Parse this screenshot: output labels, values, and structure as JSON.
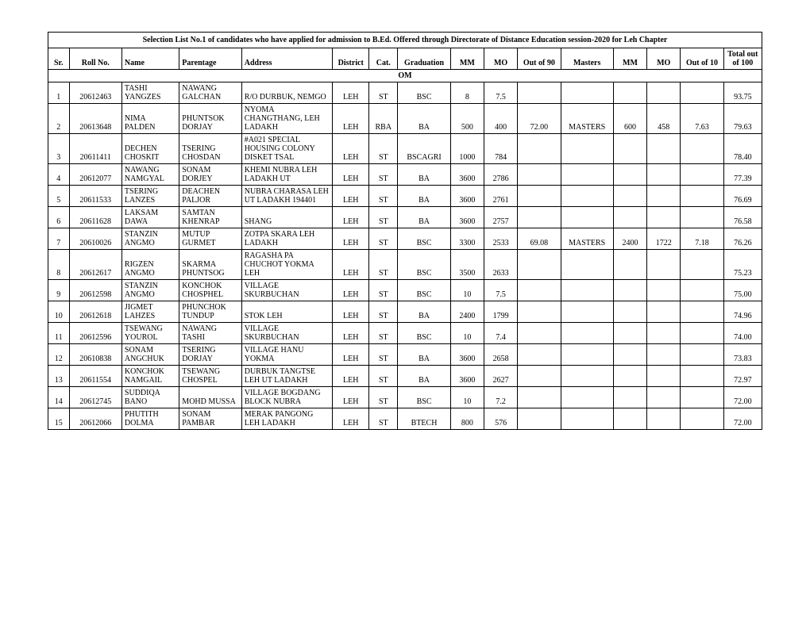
{
  "title": "Selection List No.1 of candidates who have applied for admission to B.Ed. Offered through Directorate of Distance Education session-2020 for Leh Chapter",
  "headers": {
    "sr": "Sr.",
    "roll": "Roll No.",
    "name": "Name",
    "parentage": "Parentage",
    "address": "Address",
    "district": "District",
    "cat": "Cat.",
    "graduation": "Graduation",
    "mm": "MM",
    "mo": "MO",
    "out90": "Out of 90",
    "masters": "Masters",
    "mm2": "MM",
    "mo2": "MO",
    "out10": "Out of 10",
    "total": "Total out of 100"
  },
  "section": "OM",
  "rows": [
    {
      "sr": "1",
      "roll": "20612463",
      "name": "TASHI YANGZES",
      "par": "NAWANG GALCHAN",
      "addr": "R/O DURBUK, NEMGO",
      "dist": "LEH",
      "cat": "ST",
      "grad": "BSC",
      "mm": "8",
      "mo": "7.5",
      "o90": "",
      "mast": "",
      "mm2": "",
      "mo2": "",
      "o10": "",
      "tot": "93.75"
    },
    {
      "sr": "2",
      "roll": "20613648",
      "name": "NIMA PALDEN",
      "par": "PHUNTSOK DORJAY",
      "addr": "NYOMA CHANGTHANG, LEH LADAKH",
      "dist": "LEH",
      "cat": "RBA",
      "grad": "BA",
      "mm": "500",
      "mo": "400",
      "o90": "72.00",
      "mast": "MASTERS",
      "mm2": "600",
      "mo2": "458",
      "o10": "7.63",
      "tot": "79.63"
    },
    {
      "sr": "3",
      "roll": "20611411",
      "name": "DECHEN CHOSKIT",
      "par": "TSERING CHOSDAN",
      "addr": "#A021 SPECIAL HOUSING COLONY DISKET TSAL",
      "dist": "LEH",
      "cat": "ST",
      "grad": "BSCAGRI",
      "mm": "1000",
      "mo": "784",
      "o90": "",
      "mast": "",
      "mm2": "",
      "mo2": "",
      "o10": "",
      "tot": "78.40"
    },
    {
      "sr": "4",
      "roll": "20612077",
      "name": "NAWANG NAMGYAL",
      "par": "SONAM DORJEY",
      "addr": "KHEMI NUBRA LEH LADAKH UT",
      "dist": "LEH",
      "cat": "ST",
      "grad": "BA",
      "mm": "3600",
      "mo": "2786",
      "o90": "",
      "mast": "",
      "mm2": "",
      "mo2": "",
      "o10": "",
      "tot": "77.39"
    },
    {
      "sr": "5",
      "roll": "20611533",
      "name": "TSERING LANZES",
      "par": "DEACHEN PALJOR",
      "addr": "NUBRA CHARASA LEH UT LADAKH 194401",
      "dist": "LEH",
      "cat": "ST",
      "grad": "BA",
      "mm": "3600",
      "mo": "2761",
      "o90": "",
      "mast": "",
      "mm2": "",
      "mo2": "",
      "o10": "",
      "tot": "76.69"
    },
    {
      "sr": "6",
      "roll": "20611628",
      "name": "LAKSAM DAWA",
      "par": "SAMTAN KHENRAP",
      "addr": "SHANG",
      "dist": "LEH",
      "cat": "ST",
      "grad": "BA",
      "mm": "3600",
      "mo": "2757",
      "o90": "",
      "mast": "",
      "mm2": "",
      "mo2": "",
      "o10": "",
      "tot": "76.58"
    },
    {
      "sr": "7",
      "roll": "20610026",
      "name": "STANZIN ANGMO",
      "par": "MUTUP GURMET",
      "addr": "ZOTPA SKARA LEH LADAKH",
      "dist": "LEH",
      "cat": "ST",
      "grad": "BSC",
      "mm": "3300",
      "mo": "2533",
      "o90": "69.08",
      "mast": "MASTERS",
      "mm2": "2400",
      "mo2": "1722",
      "o10": "7.18",
      "tot": "76.26"
    },
    {
      "sr": "8",
      "roll": "20612617",
      "name": "RIGZEN ANGMO",
      "par": "SKARMA PHUNTSOG",
      "addr": "RAGASHA PA CHUCHOT YOKMA LEH",
      "dist": "LEH",
      "cat": "ST",
      "grad": "BSC",
      "mm": "3500",
      "mo": "2633",
      "o90": "",
      "mast": "",
      "mm2": "",
      "mo2": "",
      "o10": "",
      "tot": "75.23"
    },
    {
      "sr": "9",
      "roll": "20612598",
      "name": "STANZIN ANGMO",
      "par": "KONCHOK CHOSPHEL",
      "addr": "VILLAGE SKURBUCHAN",
      "dist": "LEH",
      "cat": "ST",
      "grad": "BSC",
      "mm": "10",
      "mo": "7.5",
      "o90": "",
      "mast": "",
      "mm2": "",
      "mo2": "",
      "o10": "",
      "tot": "75.00"
    },
    {
      "sr": "10",
      "roll": "20612618",
      "name": "JIGMET LAHZES",
      "par": "PHUNCHOK TUNDUP",
      "addr": "STOK LEH",
      "dist": "LEH",
      "cat": "ST",
      "grad": "BA",
      "mm": "2400",
      "mo": "1799",
      "o90": "",
      "mast": "",
      "mm2": "",
      "mo2": "",
      "o10": "",
      "tot": "74.96"
    },
    {
      "sr": "11",
      "roll": "20612596",
      "name": "TSEWANG YOUROL",
      "par": "NAWANG TASHI",
      "addr": "VILLAGE SKURBUCHAN",
      "dist": "LEH",
      "cat": "ST",
      "grad": "BSC",
      "mm": "10",
      "mo": "7.4",
      "o90": "",
      "mast": "",
      "mm2": "",
      "mo2": "",
      "o10": "",
      "tot": "74.00"
    },
    {
      "sr": "12",
      "roll": "20610838",
      "name": "SONAM ANGCHUK",
      "par": "TSERING DORJAY",
      "addr": "VILLAGE HANU YOKMA",
      "dist": "LEH",
      "cat": "ST",
      "grad": "BA",
      "mm": "3600",
      "mo": "2658",
      "o90": "",
      "mast": "",
      "mm2": "",
      "mo2": "",
      "o10": "",
      "tot": "73.83"
    },
    {
      "sr": "13",
      "roll": "20611554",
      "name": "KONCHOK NAMGAIL",
      "par": "TSEWANG CHOSPEL",
      "addr": "DURBUK TANGTSE LEH UT LADAKH",
      "dist": "LEH",
      "cat": "ST",
      "grad": "BA",
      "mm": "3600",
      "mo": "2627",
      "o90": "",
      "mast": "",
      "mm2": "",
      "mo2": "",
      "o10": "",
      "tot": "72.97"
    },
    {
      "sr": "14",
      "roll": "20612745",
      "name": "SUDDIQA BANO",
      "par": "MOHD MUSSA",
      "addr": "VILLAGE BOGDANG BLOCK NUBRA",
      "dist": "LEH",
      "cat": "ST",
      "grad": "BSC",
      "mm": "10",
      "mo": "7.2",
      "o90": "",
      "mast": "",
      "mm2": "",
      "mo2": "",
      "o10": "",
      "tot": "72.00"
    },
    {
      "sr": "15",
      "roll": "20612066",
      "name": "PHUTITH DOLMA",
      "par": "SONAM PAMBAR",
      "addr": "MERAK PANGONG LEH LADAKH",
      "dist": "LEH",
      "cat": "ST",
      "grad": "BTECH",
      "mm": "800",
      "mo": "576",
      "o90": "",
      "mast": "",
      "mm2": "",
      "mo2": "",
      "o10": "",
      "tot": "72.00"
    }
  ]
}
